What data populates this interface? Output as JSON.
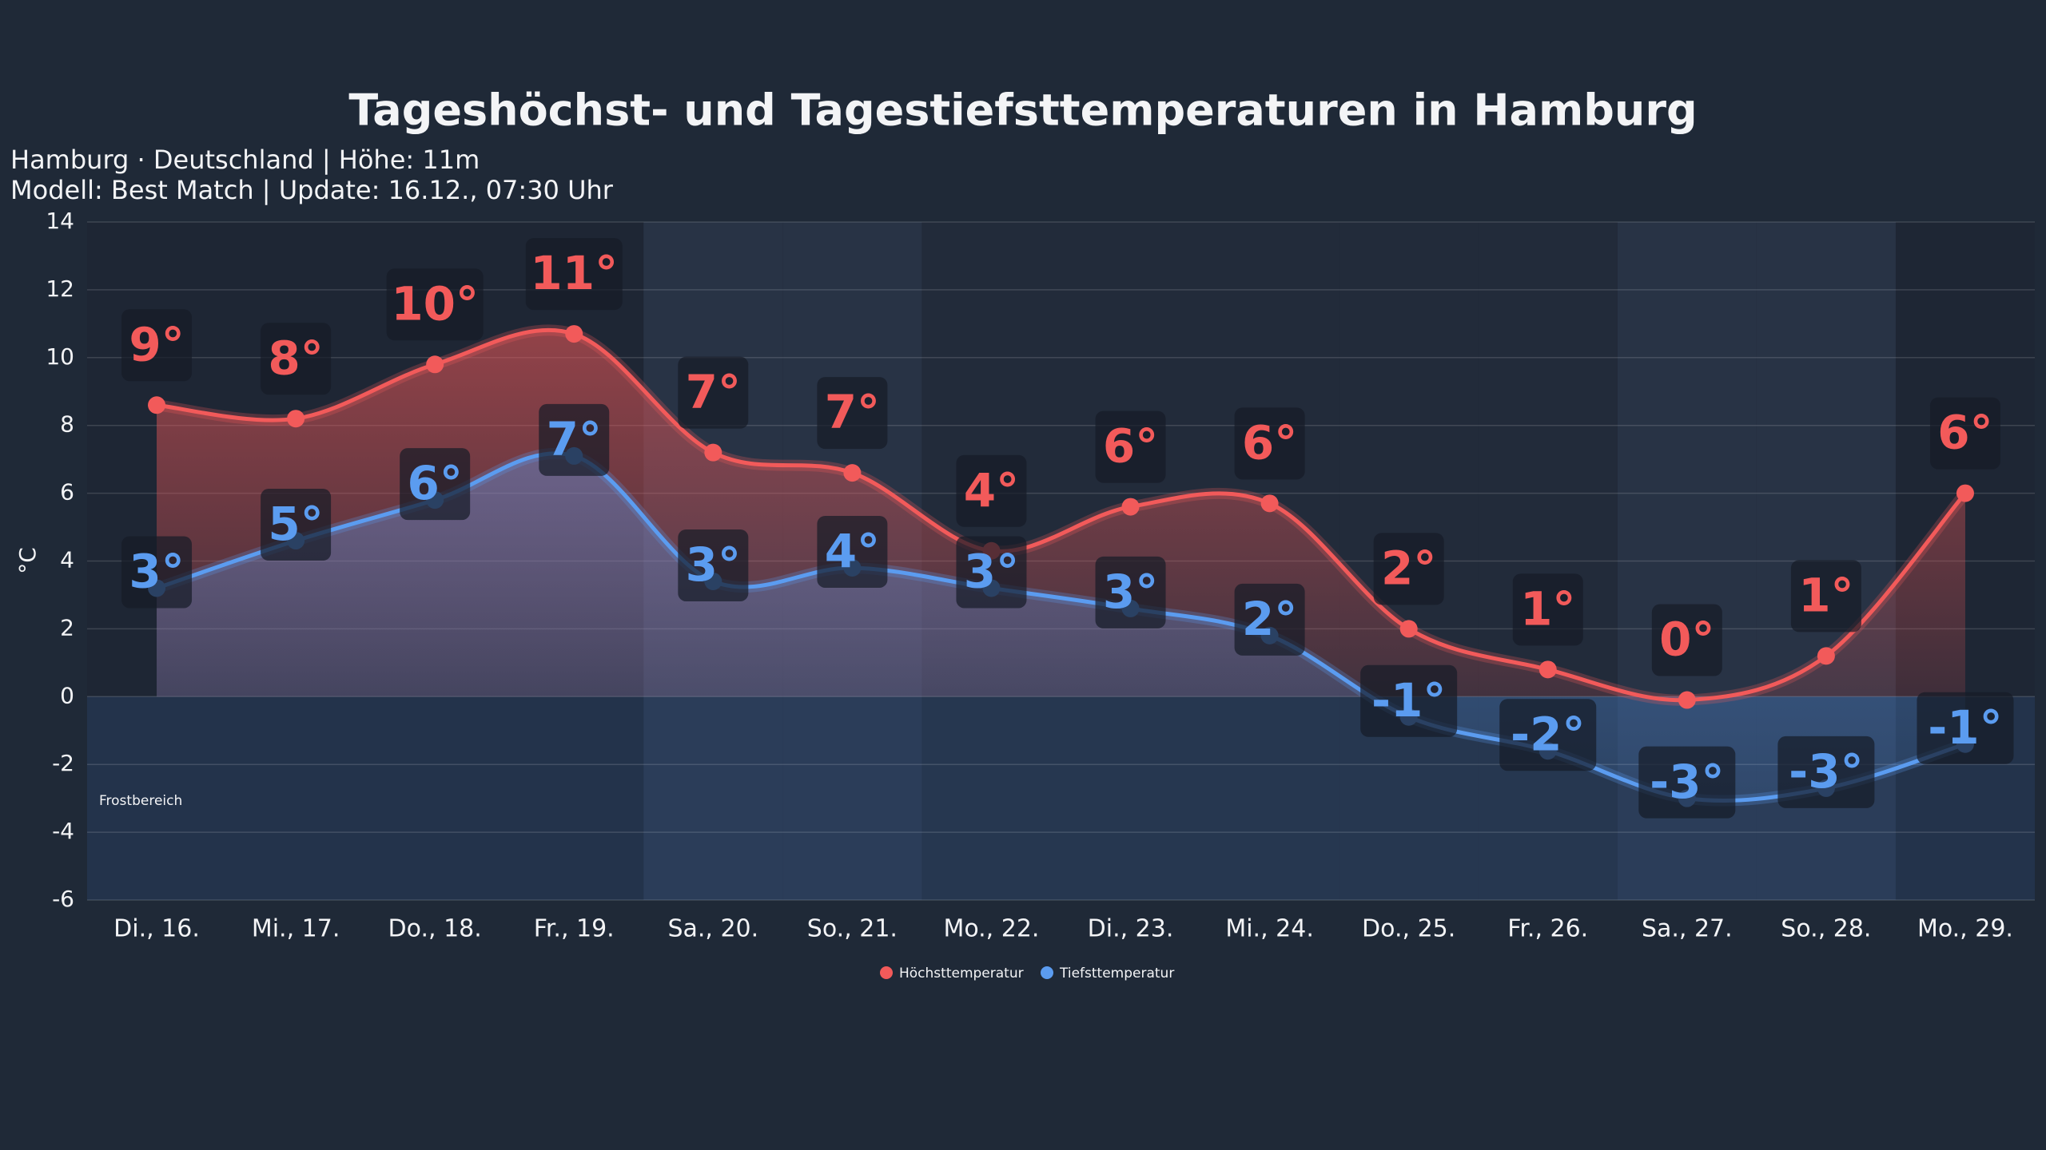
{
  "chart_data": {
    "type": "line",
    "title": "Tageshöchst- und Tagestiefsttemperaturen in Hamburg",
    "subtitle": [
      "Hamburg · Deutschland | Höhe: 11m",
      "Modell: Best Match | Update: 16.12., 07:30 Uhr"
    ],
    "y_label": "°C",
    "annotation": "Frostbereich",
    "categories": [
      "Di., 16.",
      "Mi., 17.",
      "Do., 18.",
      "Fr., 19.",
      "Sa., 20.",
      "So., 21.",
      "Mo., 22.",
      "Di., 23.",
      "Mi., 24.",
      "Do., 25.",
      "Fr., 26.",
      "Sa., 27.",
      "So., 28.",
      "Mo., 29."
    ],
    "series": [
      {
        "name": "Höchsttemperatur",
        "color": "#f25a5a",
        "values": [
          8.6,
          8.2,
          9.8,
          10.7,
          7.2,
          6.6,
          4.3,
          5.6,
          5.7,
          2.0,
          0.8,
          -0.1,
          1.2,
          6.0
        ],
        "value_labels": [
          "9°",
          "8°",
          "10°",
          "11°",
          "7°",
          "7°",
          "4°",
          "6°",
          "6°",
          "2°",
          "1°",
          "0°",
          "1°",
          "6°"
        ]
      },
      {
        "name": "Tiefsttemperatur",
        "color": "#5b9cf0",
        "values": [
          3.2,
          4.6,
          5.8,
          7.1,
          3.4,
          3.8,
          3.2,
          2.6,
          1.8,
          -0.6,
          -1.6,
          -3.0,
          -2.7,
          -1.4
        ],
        "value_labels": [
          "3°",
          "5°",
          "6°",
          "7°",
          "3°",
          "4°",
          "3°",
          "3°",
          "2°",
          "-1°",
          "-2°",
          "-3°",
          "-3°",
          "-1°"
        ]
      }
    ],
    "ylim": [
      -6,
      14
    ],
    "yticks": [
      -6,
      -4,
      -2,
      0,
      2,
      4,
      6,
      8,
      10,
      12,
      14
    ],
    "grid": true
  }
}
